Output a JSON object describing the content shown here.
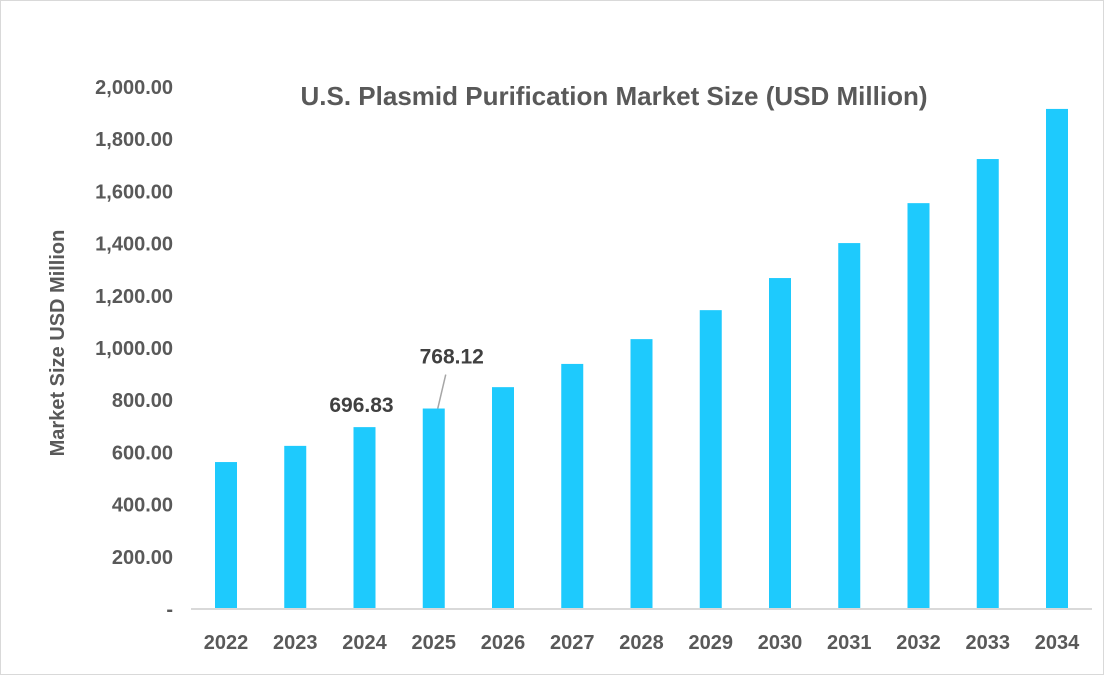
{
  "chart_data": {
    "type": "bar",
    "title": "U.S. Plasmid Purification Market Size (USD Million)",
    "xlabel": "",
    "ylabel": "Market Size USD Million",
    "categories": [
      "2022",
      "2023",
      "2024",
      "2025",
      "2026",
      "2027",
      "2028",
      "2029",
      "2030",
      "2031",
      "2032",
      "2033",
      "2034"
    ],
    "values": [
      563,
      625,
      696.83,
      768.12,
      850,
      939,
      1034,
      1145,
      1268,
      1402,
      1555,
      1724,
      1916
    ],
    "ylim": [
      0,
      2000
    ],
    "yticks": [
      "-",
      "200.00",
      "400.00",
      "600.00",
      "800.00",
      "1,000.00",
      "1,200.00",
      "1,400.00",
      "1,600.00",
      "1,800.00",
      "2,000.00"
    ],
    "data_labels": [
      {
        "category": "2024",
        "text": "696.83"
      },
      {
        "category": "2025",
        "text": "768.12"
      }
    ],
    "grid": false,
    "legend": "none",
    "bar_color": "#1ECAFD"
  }
}
